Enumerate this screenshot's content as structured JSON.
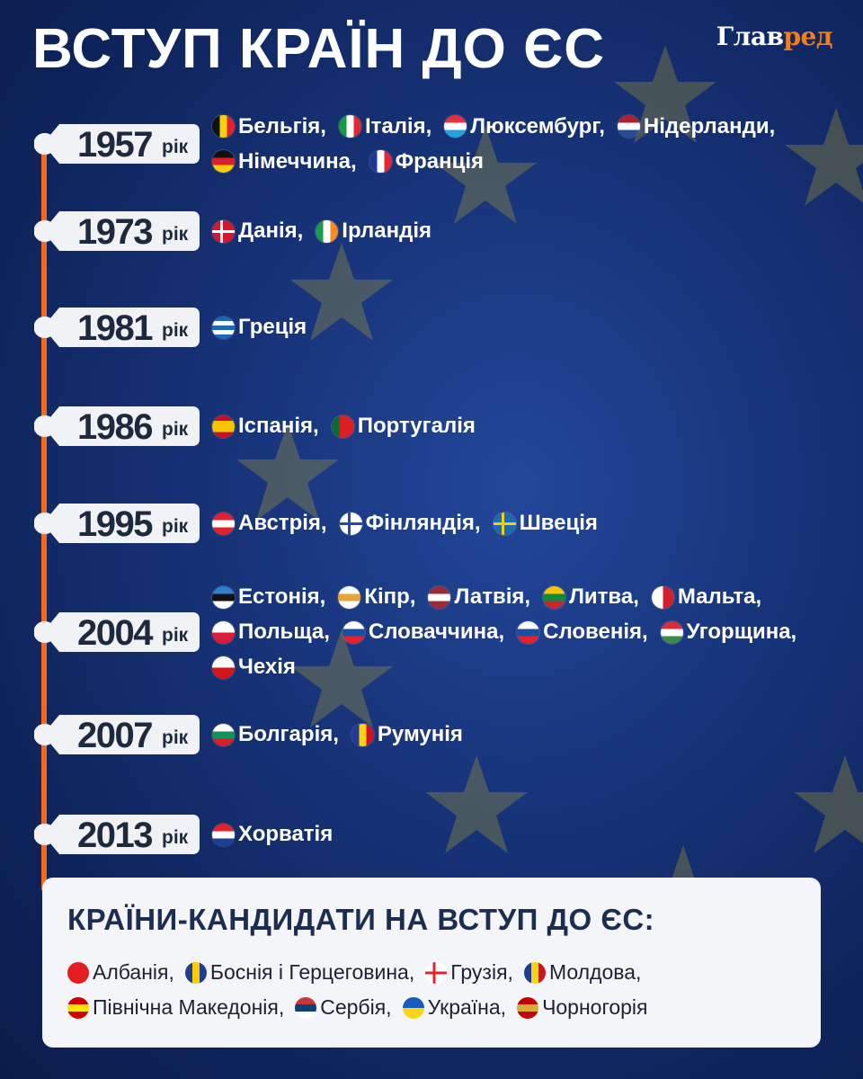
{
  "title": "ВСТУП КРАЇН ДО ЄС",
  "logo": {
    "main": "Глав",
    "accent": "ред",
    "accent_color": "#f07f1f"
  },
  "timeline_color": "#f26a1b",
  "year_suffix": "рік",
  "rows": [
    {
      "year": "1957",
      "lines": [
        [
          {
            "name": "Бельгія,",
            "flag": {
              "dir": "v",
              "colors": [
                "#111",
                "#f5d20c",
                "#e3202b"
              ]
            }
          },
          {
            "name": "Італія,",
            "flag": {
              "dir": "v",
              "colors": [
                "#139a45",
                "#fff",
                "#dd2a35"
              ]
            }
          },
          {
            "name": "Люксембург,",
            "flag": {
              "dir": "h",
              "colors": [
                "#e8303a",
                "#fff",
                "#23a3dc"
              ]
            }
          },
          {
            "name": "Нідерланди,",
            "flag": {
              "dir": "h",
              "colors": [
                "#b0212c",
                "#fff",
                "#254b98"
              ]
            }
          }
        ],
        [
          {
            "name": "Німеччина,",
            "flag": {
              "dir": "h",
              "colors": [
                "#111",
                "#dd1f26",
                "#f7cd0b"
              ]
            }
          },
          {
            "name": "Франція",
            "flag": {
              "dir": "v",
              "colors": [
                "#1d3a92",
                "#fff",
                "#e32633"
              ]
            }
          }
        ]
      ]
    },
    {
      "year": "1973",
      "lines": [
        [
          {
            "name": "Данія,",
            "flag": {
              "dir": "cross",
              "colors": [
                "#d5172e",
                "#fff"
              ]
            }
          },
          {
            "name": "Ірландія",
            "flag": {
              "dir": "v",
              "colors": [
                "#1a9a4c",
                "#fff",
                "#f68b24"
              ]
            }
          }
        ]
      ]
    },
    {
      "year": "1981",
      "lines": [
        [
          {
            "name": "Греція",
            "flag": {
              "dir": "h",
              "colors": [
                "#1c68b8",
                "#fff",
                "#1c68b8",
                "#fff",
                "#1c68b8"
              ]
            }
          }
        ]
      ]
    },
    {
      "year": "1986",
      "lines": [
        [
          {
            "name": "Іспанія,",
            "flag": {
              "dir": "h",
              "colors": [
                "#c8102e",
                "#f8c300",
                "#f8c300",
                "#c8102e"
              ]
            }
          },
          {
            "name": "Португалія",
            "flag": {
              "dir": "v",
              "colors": [
                "#0a6a2f",
                "#da1f26",
                "#da1f26"
              ]
            }
          }
        ]
      ]
    },
    {
      "year": "1995",
      "lines": [
        [
          {
            "name": "Австрія,",
            "flag": {
              "dir": "h",
              "colors": [
                "#e3202b",
                "#fff",
                "#e3202b"
              ]
            }
          },
          {
            "name": "Фінляндія,",
            "flag": {
              "dir": "cross",
              "colors": [
                "#fff",
                "#1c4fa3"
              ]
            }
          },
          {
            "name": "Швеція",
            "flag": {
              "dir": "cross",
              "colors": [
                "#1a6bb4",
                "#f9cc0e"
              ]
            }
          }
        ]
      ]
    },
    {
      "year": "2004",
      "lines": [
        [
          {
            "name": "Естонія,",
            "flag": {
              "dir": "h",
              "colors": [
                "#2f7fd0",
                "#111",
                "#fff"
              ]
            }
          },
          {
            "name": "Кіпр,",
            "flag": {
              "dir": "h",
              "colors": [
                "#fff",
                "#e8a33b",
                "#fff"
              ]
            }
          },
          {
            "name": "Латвія,",
            "flag": {
              "dir": "h",
              "colors": [
                "#9e2a35",
                "#fff",
                "#9e2a35"
              ]
            }
          },
          {
            "name": "Литва,",
            "flag": {
              "dir": "h",
              "colors": [
                "#f9c30a",
                "#0f8a43",
                "#c9272f"
              ]
            }
          },
          {
            "name": "Мальта,",
            "flag": {
              "dir": "v",
              "colors": [
                "#fff",
                "#d3202e"
              ]
            }
          }
        ],
        [
          {
            "name": "Польща,",
            "flag": {
              "dir": "h",
              "colors": [
                "#fff",
                "#dc1c38"
              ]
            }
          },
          {
            "name": "Словаччина,",
            "flag": {
              "dir": "h",
              "colors": [
                "#fff",
                "#1d4fa0",
                "#e3202b"
              ]
            }
          },
          {
            "name": "Словенія,",
            "flag": {
              "dir": "h",
              "colors": [
                "#fff",
                "#1d4fa0",
                "#e3202b"
              ]
            }
          },
          {
            "name": "Угорщина,",
            "flag": {
              "dir": "h",
              "colors": [
                "#d82d3a",
                "#fff",
                "#3b8a4b"
              ]
            }
          }
        ],
        [
          {
            "name": "Чехія",
            "flag": {
              "dir": "h",
              "colors": [
                "#fff",
                "#d7141a"
              ]
            }
          }
        ]
      ]
    },
    {
      "year": "2007",
      "lines": [
        [
          {
            "name": "Болгарія,",
            "flag": {
              "dir": "h",
              "colors": [
                "#fff",
                "#13915a",
                "#d51f26"
              ]
            }
          },
          {
            "name": "Румунія",
            "flag": {
              "dir": "v",
              "colors": [
                "#1f3c92",
                "#fcd116",
                "#ce1126"
              ]
            }
          }
        ]
      ]
    },
    {
      "year": "2013",
      "lines": [
        [
          {
            "name": "Хорватія",
            "flag": {
              "dir": "h",
              "colors": [
                "#e3202b",
                "#fff",
                "#1d3e96"
              ]
            }
          }
        ]
      ]
    }
  ],
  "candidates": {
    "title": "КРАЇНИ-КАНДИДАТИ НА ВСТУП ДО ЄС:",
    "lines": [
      [
        {
          "name": "Албанія,",
          "flag": {
            "dir": "h",
            "colors": [
              "#e41e20",
              "#e41e20"
            ]
          }
        },
        {
          "name": "Боснія і Герцеговина,",
          "flag": {
            "dir": "v",
            "colors": [
              "#1c3f94",
              "#fecb00",
              "#1c3f94"
            ]
          }
        },
        {
          "name": "Грузія,",
          "flag": {
            "dir": "cross",
            "colors": [
              "#fff",
              "#e3202b"
            ]
          }
        },
        {
          "name": "Молдова,",
          "flag": {
            "dir": "v",
            "colors": [
              "#1f3c92",
              "#fcd116",
              "#ce1126"
            ]
          }
        }
      ],
      [
        {
          "name": "Північна Македонія,",
          "flag": {
            "dir": "h",
            "colors": [
              "#d20000",
              "#ffe600",
              "#d20000"
            ]
          }
        },
        {
          "name": "Сербія,",
          "flag": {
            "dir": "h",
            "colors": [
              "#c6363c",
              "#0c4076",
              "#fff"
            ]
          }
        },
        {
          "name": "Україна,",
          "flag": {
            "dir": "h",
            "colors": [
              "#1a5bbf",
              "#f9d616"
            ]
          }
        },
        {
          "name": "Чорногорія",
          "flag": {
            "dir": "h",
            "colors": [
              "#c40308",
              "#d3ae3b",
              "#c40308"
            ]
          }
        }
      ]
    ]
  }
}
